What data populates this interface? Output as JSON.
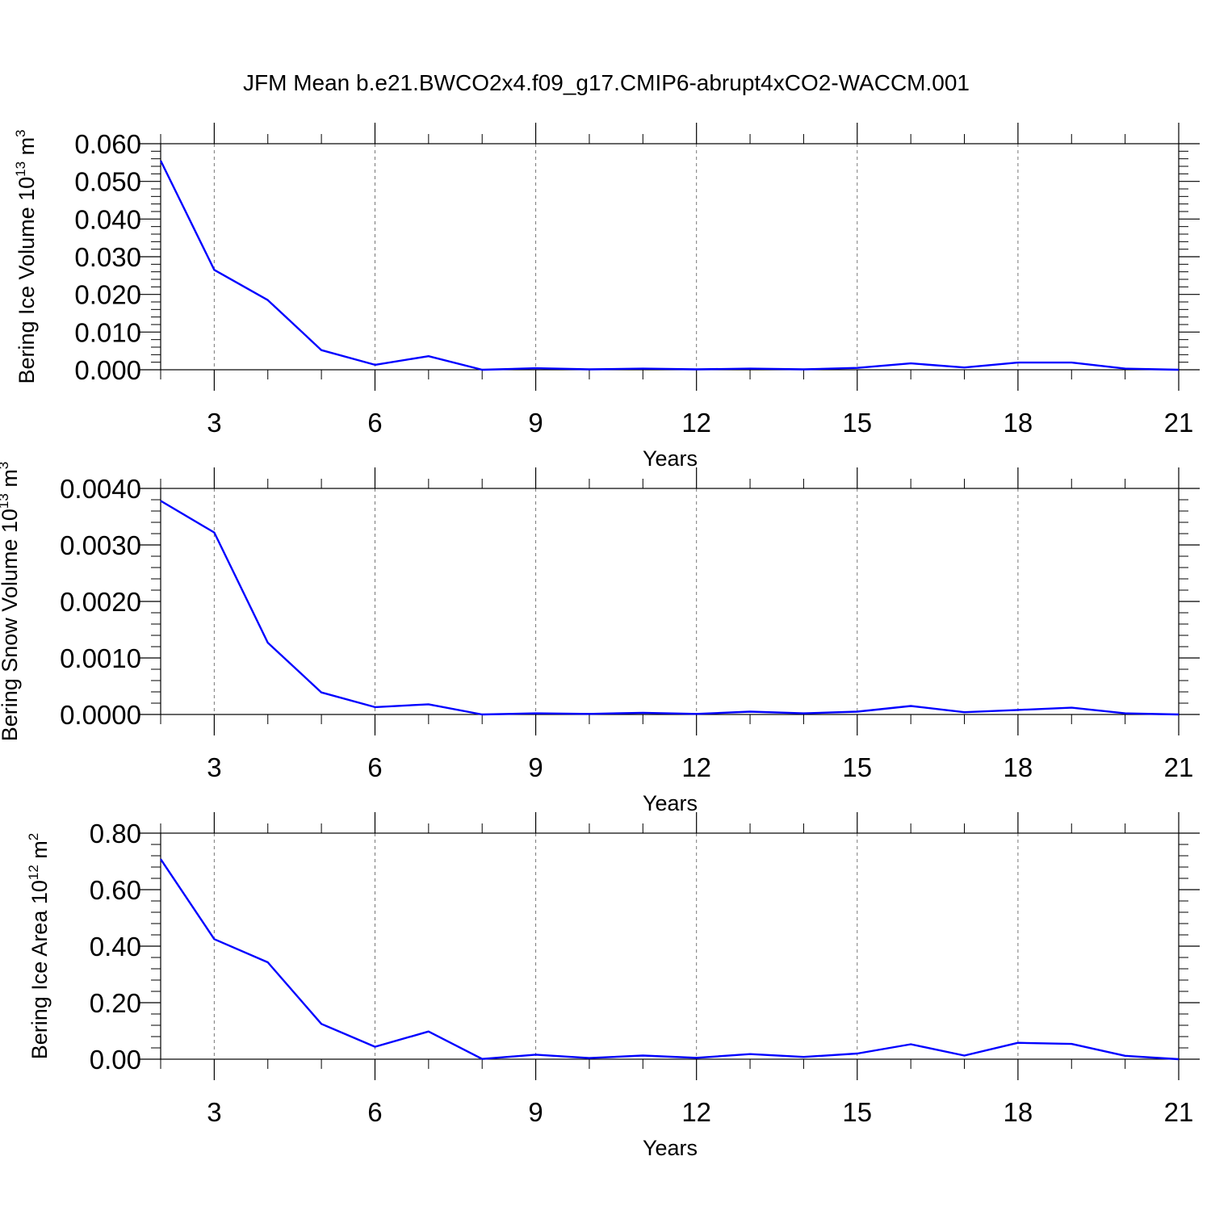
{
  "title": "JFM Mean b.e21.BWCO2x4.f09_g17.CMIP6-abrupt4xCO2-WACCM.001",
  "colors": {
    "line": "#0000ff",
    "axis": "#000000",
    "grid": "#777777",
    "background": "#ffffff"
  },
  "chart_data": [
    {
      "type": "line",
      "title": "",
      "xlabel": "Years",
      "ylabel": {
        "text": "Bering Ice Volume 10",
        "exponent": "13",
        "unit": " m",
        "unit_exponent": "3"
      },
      "xlim": [
        2,
        21
      ],
      "ylim": [
        0,
        0.06
      ],
      "xticks": [
        3,
        6,
        9,
        12,
        15,
        18,
        21
      ],
      "xtick_labels": [
        "3",
        "6",
        "9",
        "12",
        "15",
        "18",
        "21"
      ],
      "yticks": [
        0,
        0.01,
        0.02,
        0.03,
        0.04,
        0.05,
        0.06
      ],
      "ytick_labels": [
        "0.000",
        "0.010",
        "0.020",
        "0.030",
        "0.040",
        "0.050",
        "0.060"
      ],
      "grid": "vertical-dashed",
      "series": [
        {
          "name": "Bering Ice Volume",
          "x": [
            2,
            3,
            4,
            5,
            6,
            7,
            8,
            9,
            10,
            11,
            12,
            13,
            14,
            15,
            16,
            17,
            18,
            19,
            20,
            21
          ],
          "values": [
            0.0555,
            0.0265,
            0.0185,
            0.0052,
            0.0013,
            0.0036,
            0.0,
            0.0004,
            0.0001,
            0.0003,
            0.0001,
            0.0003,
            0.0001,
            0.0005,
            0.0017,
            0.0006,
            0.0019,
            0.0019,
            0.0003,
            0.0
          ]
        }
      ]
    },
    {
      "type": "line",
      "title": "",
      "xlabel": "Years",
      "ylabel": {
        "text": "Bering Snow Volume 10",
        "exponent": "13",
        "unit": " m",
        "unit_exponent": "3"
      },
      "xlim": [
        2,
        21
      ],
      "ylim": [
        0,
        0.004
      ],
      "xticks": [
        3,
        6,
        9,
        12,
        15,
        18,
        21
      ],
      "xtick_labels": [
        "3",
        "6",
        "9",
        "12",
        "15",
        "18",
        "21"
      ],
      "yticks": [
        0,
        0.001,
        0.002,
        0.003,
        0.004
      ],
      "ytick_labels": [
        "0.0000",
        "0.0010",
        "0.0020",
        "0.0030",
        "0.0040"
      ],
      "grid": "vertical-dashed",
      "series": [
        {
          "name": "Bering Snow Volume",
          "x": [
            2,
            3,
            4,
            5,
            6,
            7,
            8,
            9,
            10,
            11,
            12,
            13,
            14,
            15,
            16,
            17,
            18,
            19,
            20,
            21
          ],
          "values": [
            0.00378,
            0.00322,
            0.00127,
            0.00039,
            0.00013,
            0.00018,
            0.0,
            2e-05,
            1e-05,
            3e-05,
            1e-05,
            5e-05,
            2e-05,
            5e-05,
            0.00015,
            4e-05,
            8e-05,
            0.00012,
            2e-05,
            0.0
          ]
        }
      ]
    },
    {
      "type": "line",
      "title": "",
      "xlabel": "Years",
      "ylabel": {
        "text": "Bering Ice Area 10",
        "exponent": "12",
        "unit": " m",
        "unit_exponent": "2"
      },
      "xlim": [
        2,
        21
      ],
      "ylim": [
        0,
        0.8
      ],
      "xticks": [
        3,
        6,
        9,
        12,
        15,
        18,
        21
      ],
      "xtick_labels": [
        "3",
        "6",
        "9",
        "12",
        "15",
        "18",
        "21"
      ],
      "yticks": [
        0,
        0.2,
        0.4,
        0.6,
        0.8
      ],
      "ytick_labels": [
        "0.00",
        "0.20",
        "0.40",
        "0.60",
        "0.80"
      ],
      "grid": "vertical-dashed",
      "series": [
        {
          "name": "Bering Ice Area",
          "x": [
            2,
            3,
            4,
            5,
            6,
            7,
            8,
            9,
            10,
            11,
            12,
            13,
            14,
            15,
            16,
            17,
            18,
            19,
            20,
            21
          ],
          "values": [
            0.708,
            0.425,
            0.343,
            0.125,
            0.044,
            0.098,
            0.001,
            0.016,
            0.004,
            0.013,
            0.005,
            0.018,
            0.008,
            0.02,
            0.053,
            0.013,
            0.058,
            0.054,
            0.012,
            0.0
          ]
        }
      ]
    }
  ]
}
